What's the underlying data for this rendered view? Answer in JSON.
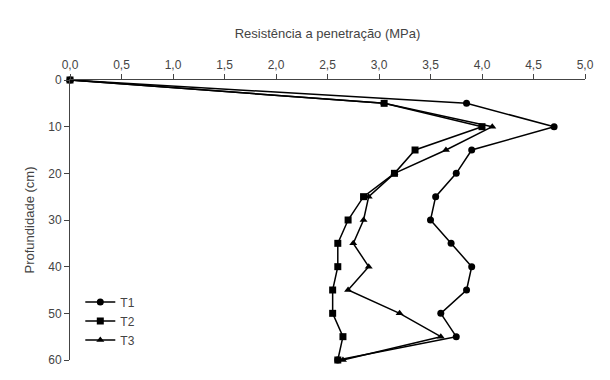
{
  "chart_data": {
    "type": "line",
    "xlabel": "Resistência a penetração (MPa)",
    "ylabel": "Profundidade (cm)",
    "xlim": [
      0.0,
      5.0
    ],
    "ylim": [
      60,
      0
    ],
    "xticks": [
      {
        "value": 0.0,
        "label": "0,0"
      },
      {
        "value": 0.5,
        "label": "0,5"
      },
      {
        "value": 1.0,
        "label": "1,0"
      },
      {
        "value": 1.5,
        "label": "1,5"
      },
      {
        "value": 2.0,
        "label": "2,0"
      },
      {
        "value": 2.5,
        "label": "2,5"
      },
      {
        "value": 3.0,
        "label": "3,0"
      },
      {
        "value": 3.5,
        "label": "3,5"
      },
      {
        "value": 4.0,
        "label": "4,0"
      },
      {
        "value": 4.5,
        "label": "4,5"
      },
      {
        "value": 5.0,
        "label": "5,0"
      }
    ],
    "yticks": [
      0,
      10,
      20,
      30,
      40,
      50,
      60
    ],
    "grid": false,
    "legend": "lower left",
    "series": [
      {
        "name": "T1",
        "color": "#000000",
        "marker": "circle",
        "x": [
          0.0,
          3.85,
          4.7,
          3.9,
          3.75,
          3.55,
          3.5,
          3.7,
          3.9,
          3.85,
          3.6,
          3.75,
          2.6
        ],
        "y": [
          0,
          5,
          10,
          15,
          20,
          25,
          30,
          35,
          40,
          45,
          50,
          55,
          60
        ]
      },
      {
        "name": "T2",
        "color": "#000000",
        "marker": "square",
        "x": [
          0.0,
          3.05,
          4.0,
          3.35,
          3.15,
          2.85,
          2.7,
          2.6,
          2.6,
          2.55,
          2.55,
          2.65,
          2.6
        ],
        "y": [
          0,
          5,
          10,
          15,
          20,
          25,
          30,
          35,
          40,
          45,
          50,
          55,
          60
        ]
      },
      {
        "name": "T3",
        "color": "#000000",
        "marker": "triangle-up",
        "x": [
          0.0,
          3.05,
          4.1,
          3.65,
          3.15,
          2.9,
          2.85,
          2.75,
          2.9,
          2.7,
          3.2,
          3.6,
          2.65
        ],
        "y": [
          0,
          5,
          10,
          15,
          20,
          25,
          30,
          35,
          40,
          45,
          50,
          55,
          60
        ]
      }
    ]
  }
}
